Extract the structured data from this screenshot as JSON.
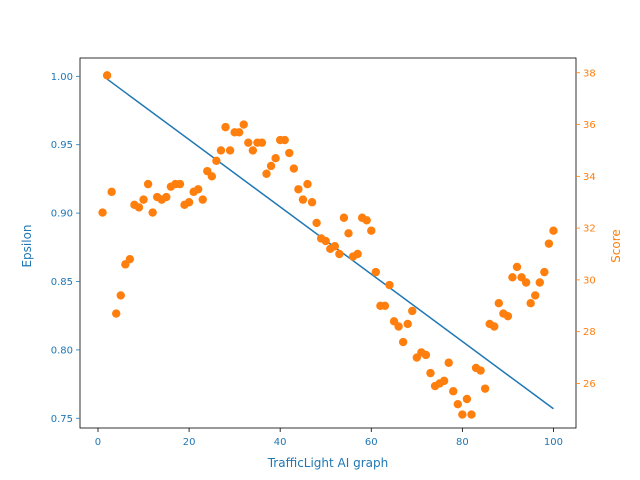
{
  "chart_data": {
    "type": "line+scatter",
    "xlabel": "TrafficLight AI graph",
    "ylabel_left": "Epsilon",
    "ylabel_right": "Score",
    "xlim": [
      -3.95,
      104.95
    ],
    "ylim_left": [
      0.7429,
      1.0134
    ],
    "ylim_right": [
      24.28,
      38.57
    ],
    "x_ticks": [
      0,
      20,
      40,
      60,
      80,
      100
    ],
    "y_left_ticks": [
      0.75,
      0.8,
      0.85,
      0.9,
      0.95,
      1.0
    ],
    "y_right_ticks": [
      26,
      28,
      30,
      32,
      34,
      36,
      38
    ],
    "grid": false,
    "legend": "none",
    "colors": {
      "epsilon": "#1f77b4",
      "score": "#ff7f0e",
      "axis": "#000000"
    },
    "epsilon": {
      "x": [
        2,
        100
      ],
      "y": [
        0.998,
        0.757
      ]
    },
    "score": {
      "x": [
        1,
        2,
        3,
        4,
        5,
        6,
        7,
        8,
        9,
        10,
        11,
        12,
        13,
        14,
        15,
        16,
        17,
        18,
        19,
        20,
        21,
        22,
        23,
        24,
        25,
        26,
        27,
        28,
        29,
        30,
        31,
        32,
        33,
        34,
        35,
        36,
        37,
        38,
        39,
        40,
        41,
        42,
        43,
        44,
        45,
        46,
        47,
        48,
        49,
        50,
        51,
        52,
        53,
        54,
        55,
        56,
        57,
        58,
        59,
        60,
        61,
        62,
        63,
        64,
        65,
        66,
        67,
        68,
        69,
        70,
        71,
        72,
        73,
        74,
        75,
        76,
        77,
        78,
        79,
        80,
        81,
        82,
        83,
        84,
        85,
        86,
        87,
        88,
        89,
        90,
        91,
        92,
        93,
        94,
        95,
        96,
        97,
        98,
        99,
        100
      ],
      "y": [
        32.6,
        37.9,
        33.4,
        28.7,
        29.4,
        30.6,
        30.8,
        32.9,
        32.8,
        33.1,
        33.7,
        32.6,
        33.2,
        33.1,
        33.2,
        33.6,
        33.7,
        33.7,
        32.9,
        33.0,
        33.4,
        33.5,
        33.1,
        34.2,
        34.0,
        34.6,
        35.0,
        35.9,
        35.0,
        35.7,
        35.7,
        36.0,
        35.3,
        35.0,
        35.3,
        35.3,
        34.1,
        34.4,
        34.7,
        35.4,
        35.4,
        34.9,
        34.3,
        33.5,
        33.1,
        33.7,
        33.0,
        32.2,
        31.6,
        31.5,
        31.2,
        31.3,
        31.0,
        32.4,
        31.8,
        30.9,
        31.0,
        32.4,
        32.3,
        31.9,
        30.3,
        29.0,
        29.0,
        29.8,
        28.4,
        28.2,
        27.6,
        28.3,
        28.8,
        27.0,
        27.2,
        27.1,
        26.4,
        25.9,
        26.0,
        26.1,
        26.8,
        25.7,
        25.2,
        24.8,
        25.4,
        24.8,
        26.6,
        26.5,
        25.8,
        28.3,
        28.2,
        29.1,
        28.7,
        28.6,
        30.1,
        30.5,
        30.1,
        29.9,
        29.1,
        29.4,
        29.9,
        30.3,
        31.4,
        31.9
      ]
    }
  }
}
